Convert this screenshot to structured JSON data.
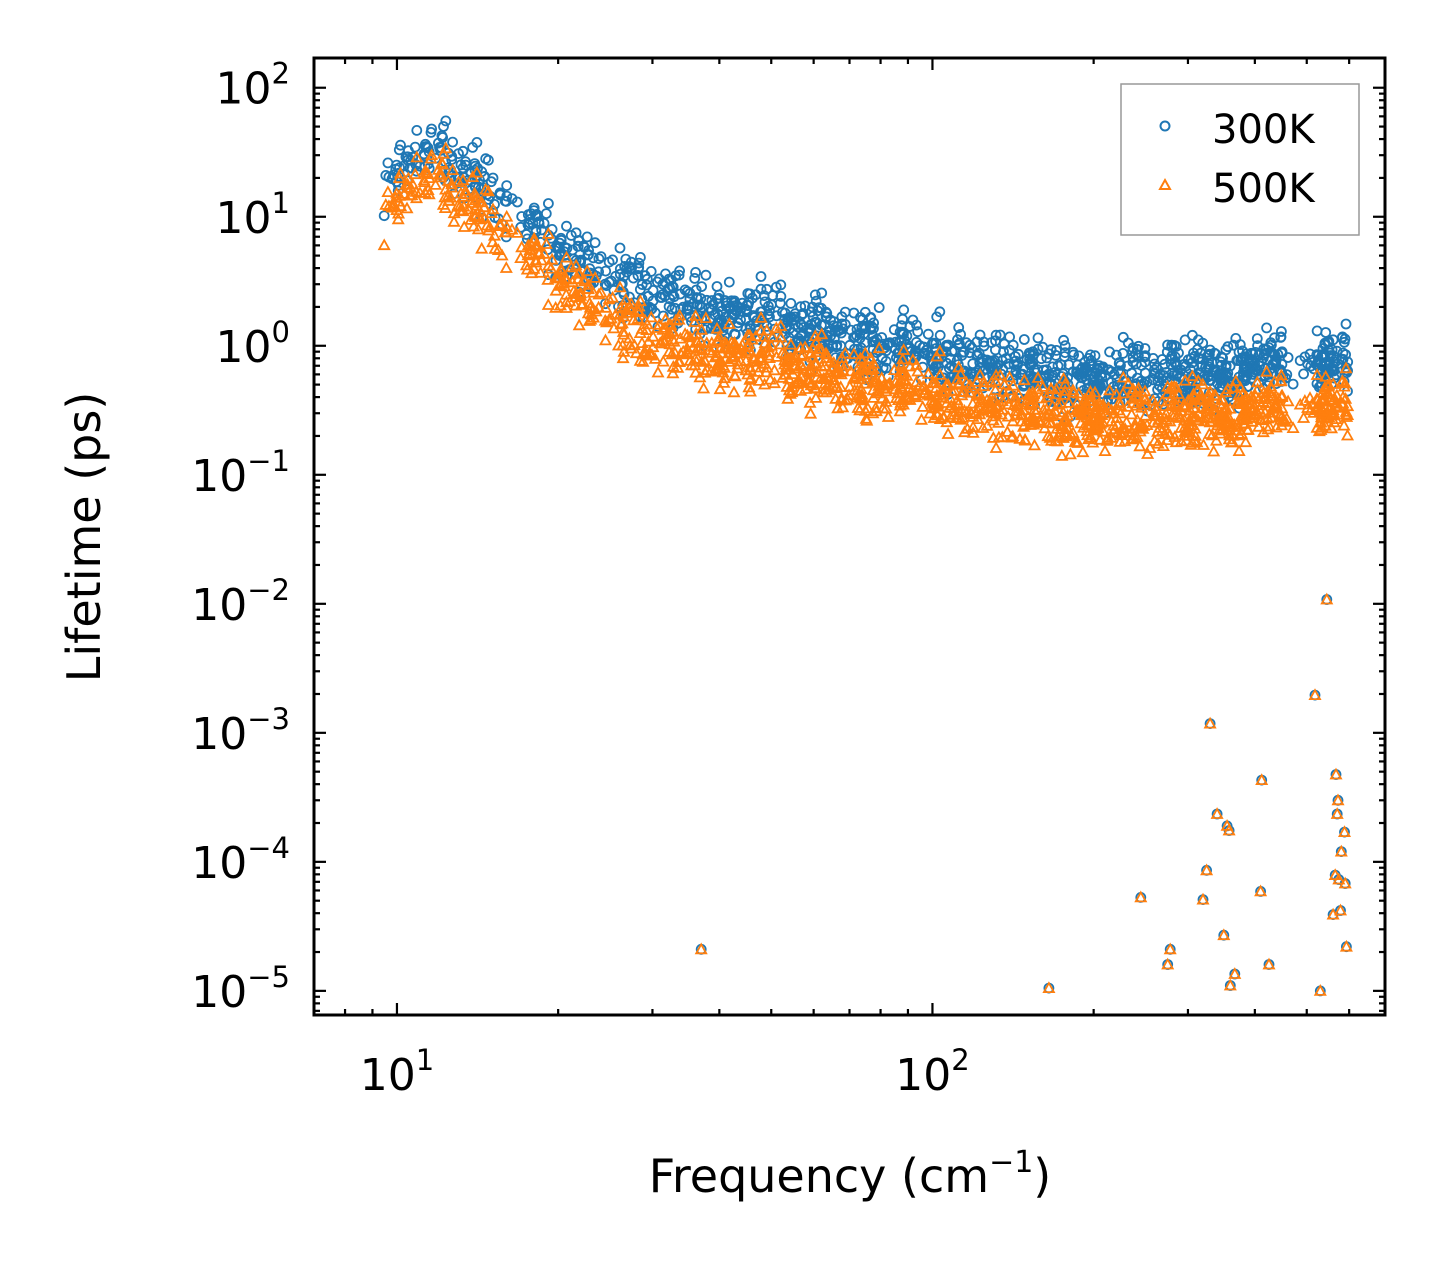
{
  "chart_data": {
    "type": "scatter",
    "xscale": "log",
    "yscale": "log",
    "xlabel": "Frequency (cm",
    "xlabel_sup": "−1",
    "xlabel_end": ")",
    "ylabel": "Lifetime (ps)",
    "xlim": [
      7,
      700
    ],
    "ylim": [
      6.5e-06,
      170
    ],
    "xticks": [
      {
        "value": 10,
        "base": "10",
        "exp": "1"
      },
      {
        "value": 100,
        "base": "10",
        "exp": "2"
      }
    ],
    "yticks": [
      {
        "value": 100,
        "base": "10",
        "exp": "2"
      },
      {
        "value": 10,
        "base": "10",
        "exp": "1"
      },
      {
        "value": 1,
        "base": "10",
        "exp": "0"
      },
      {
        "value": 0.1,
        "base": "10",
        "exp": "−1"
      },
      {
        "value": 0.01,
        "base": "10",
        "exp": "−2"
      },
      {
        "value": 0.001,
        "base": "10",
        "exp": "−3"
      },
      {
        "value": 0.0001,
        "base": "10",
        "exp": "−4"
      },
      {
        "value": 1e-05,
        "base": "10",
        "exp": "−5"
      }
    ],
    "legend_position": "top-right",
    "series": [
      {
        "name": "300K",
        "marker": "circle",
        "color": "#1f77b4"
      },
      {
        "name": "500K",
        "marker": "triangle",
        "color": "#ff7f0e"
      }
    ],
    "low_lifetime_modes": [
      [
        37,
        2.1e-05
      ],
      [
        165,
        1.05e-05
      ],
      [
        245,
        5.3e-05
      ],
      [
        275,
        1.6e-05
      ],
      [
        278,
        2.1e-05
      ],
      [
        320,
        5.1e-05
      ],
      [
        325,
        8.6e-05
      ],
      [
        330,
        0.00118
      ],
      [
        340,
        0.000235
      ],
      [
        350,
        2.7e-05
      ],
      [
        355,
        0.00019
      ],
      [
        358,
        0.000175
      ],
      [
        360,
        1.1e-05
      ],
      [
        367,
        1.35e-05
      ],
      [
        410,
        5.9e-05
      ],
      [
        412,
        0.00043
      ],
      [
        425,
        1.6e-05
      ],
      [
        518,
        0.00196
      ],
      [
        530,
        1e-05
      ],
      [
        545,
        0.0108
      ],
      [
        560,
        3.9e-05
      ],
      [
        565,
        7.9e-05
      ],
      [
        567,
        0.000475
      ],
      [
        570,
        0.000235
      ],
      [
        572,
        0.0003
      ],
      [
        574,
        7.3e-05
      ],
      [
        578,
        4.2e-05
      ],
      [
        580,
        0.00012
      ],
      [
        588,
        0.00017
      ],
      [
        590,
        6.8e-05
      ],
      [
        593,
        2.2e-05
      ]
    ],
    "trend_300K": [
      [
        9.5,
        22
      ],
      [
        11.5,
        35
      ],
      [
        15,
        14
      ],
      [
        20,
        6
      ],
      [
        25,
        3.5
      ],
      [
        30,
        2.4
      ],
      [
        40,
        1.8
      ],
      [
        50,
        1.5
      ],
      [
        70,
        1.15
      ],
      [
        100,
        0.85
      ],
      [
        150,
        0.62
      ],
      [
        200,
        0.5
      ],
      [
        250,
        0.58
      ],
      [
        300,
        0.62
      ],
      [
        400,
        0.72
      ],
      [
        600,
        0.75
      ]
    ],
    "trend_500K": [
      [
        9.5,
        13
      ],
      [
        11.5,
        22
      ],
      [
        15,
        8
      ],
      [
        20,
        3.5
      ],
      [
        25,
        1.8
      ],
      [
        30,
        1.05
      ],
      [
        40,
        0.85
      ],
      [
        50,
        0.72
      ],
      [
        70,
        0.55
      ],
      [
        100,
        0.42
      ],
      [
        150,
        0.3
      ],
      [
        200,
        0.26
      ],
      [
        250,
        0.27
      ],
      [
        300,
        0.3
      ],
      [
        400,
        0.33
      ],
      [
        600,
        0.34
      ]
    ]
  }
}
